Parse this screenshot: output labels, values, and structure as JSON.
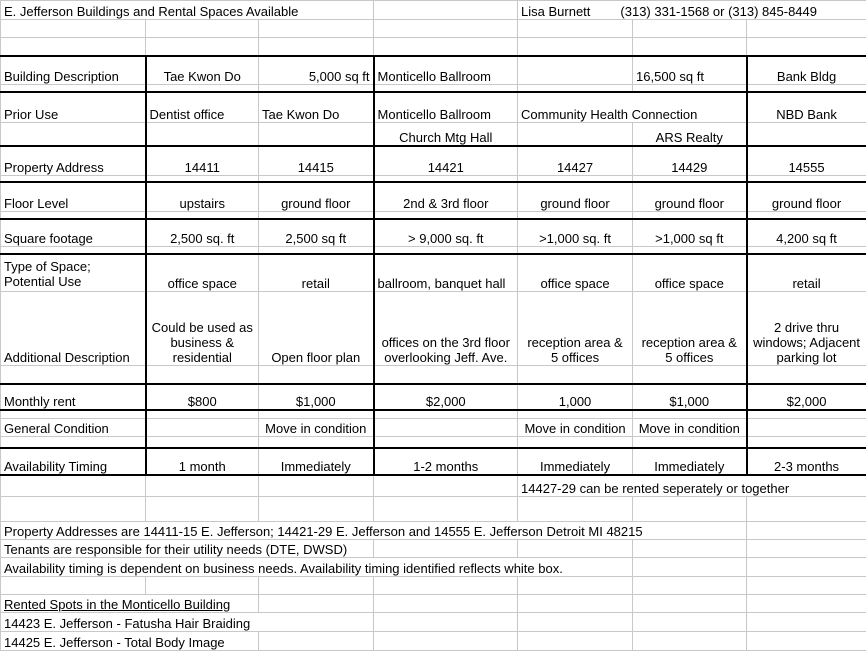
{
  "header": {
    "title": "E. Jefferson Buildings and Rental Spaces Available",
    "contact_name": "Lisa Burnett",
    "contact_phones": "(313) 331-1568  or  (313) 845-8449"
  },
  "table": {
    "building_description": {
      "label": "Building Description",
      "b": "Tae Kwon Do",
      "c": "5,000 sq ft",
      "d": "Monticello Ballroom",
      "f": "16,500 sq ft",
      "g": "Bank Bldg"
    },
    "prior_use": {
      "label": "Prior Use",
      "b": "Dentist office",
      "c": "Tae Kwon Do",
      "d": "Monticello Ballroom",
      "e": "Community Health Connection",
      "g": "NBD Bank",
      "d2": "Church Mtg Hall",
      "f2": "ARS Realty"
    },
    "property_address": {
      "label": "Property Address",
      "values": [
        "14411",
        "14415",
        "14421",
        "14427",
        "14429",
        "14555"
      ]
    },
    "floor_level": {
      "label": "Floor Level",
      "values": [
        "upstairs",
        "ground floor",
        "2nd & 3rd floor",
        "ground floor",
        "ground floor",
        "ground floor"
      ]
    },
    "square_footage": {
      "label": "Square footage",
      "values": [
        "2,500 sq. ft",
        "2,500 sq ft",
        "> 9,000 sq. ft",
        ">1,000 sq. ft",
        ">1,000 sq ft",
        "4,200 sq ft"
      ]
    },
    "type_of_space": {
      "label": "Type of Space;\nPotential Use",
      "values": [
        "office space",
        "retail",
        "ballroom, banquet hall",
        "office space",
        "office space",
        "retail"
      ]
    },
    "additional_description": {
      "label": "Additional Description",
      "values": [
        "Could be used as business & residential",
        "Open floor plan",
        "offices on the 3rd floor\noverlooking Jeff. Ave.",
        "reception area & 5 offices",
        "reception area & 5 offices",
        "2 drive thru windows; Adjacent parking lot"
      ]
    },
    "monthly_rent": {
      "label": "Monthly rent",
      "values": [
        "$800",
        "$1,000",
        "$2,000",
        "1,000",
        "$1,000",
        "$2,000"
      ]
    },
    "general_condition": {
      "label": "General Condition",
      "values": [
        "",
        "Move in condition",
        "",
        "Move in condition",
        "Move in condition",
        ""
      ]
    },
    "availability_timing": {
      "label": "Availability Timing",
      "values": [
        "1 month",
        "Immediately",
        "1-2 months",
        "Immediately",
        "Immediately",
        "2-3 months"
      ]
    }
  },
  "notes": {
    "rent_note": "14427-29 can be rented seperately or together",
    "addresses": "Property Addresses are 14411-15 E. Jefferson; 14421-29 E. Jefferson and 14555 E. Jefferson Detroit MI 48215",
    "utilities": "Tenants are responsible for their utility needs (DTE, DWSD)",
    "availability": "Availability timing is dependent on business needs. Availability timing identified reflects white box.",
    "rented_heading": "Rented Spots in the Monticello Building",
    "rented": [
      "14423 E. Jefferson - Fatusha Hair Braiding",
      "14425 E. Jefferson - Total Body Image"
    ]
  }
}
